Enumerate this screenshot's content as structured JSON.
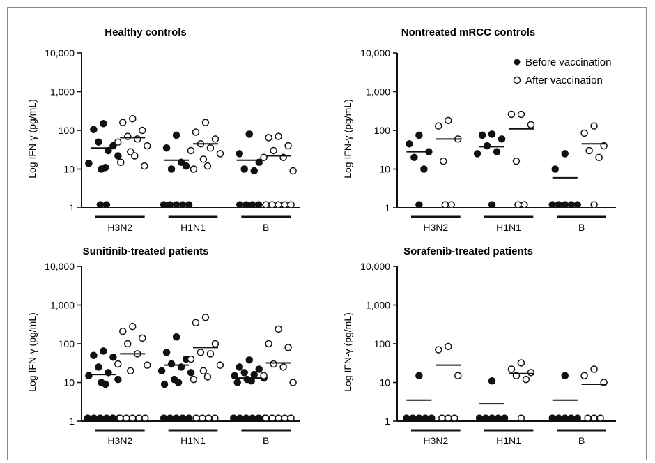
{
  "chart_data": [
    {
      "type": "scatter",
      "title": "Healthy controls",
      "ylabel": "Log IFN-γ (pg/mL)",
      "yscale": "log",
      "ylim": [
        1,
        10000
      ],
      "yticks": [
        "1",
        "10",
        "100",
        "1,000",
        "10,000"
      ],
      "categories": [
        "H3N2",
        "H1N1",
        "B"
      ],
      "series": [
        {
          "name": "Before vaccination",
          "marker": "filled",
          "values": [
            [
              150,
              105,
              40,
              50,
              30,
              14,
              22,
              10,
              11,
              1.2,
              1.2
            ],
            [
              75,
              35,
              12,
              10,
              15,
              1.2,
              1.2,
              1.2,
              1.2,
              1.2
            ],
            [
              80,
              25,
              15,
              10,
              9,
              1.2,
              1.2,
              1.2,
              1.2
            ]
          ]
        },
        {
          "name": "After vaccination",
          "marker": "open",
          "values": [
            [
              200,
              160,
              100,
              70,
              60,
              50,
              40,
              28,
              22,
              15,
              12
            ],
            [
              160,
              90,
              60,
              45,
              35,
              30,
              25,
              18,
              12,
              10
            ],
            [
              70,
              65,
              40,
              30,
              20,
              20,
              9,
              1.2,
              1.2,
              1.2,
              1.2,
              1.2
            ]
          ]
        }
      ],
      "means": [
        [
          35,
          65
        ],
        [
          17,
          45
        ],
        [
          17,
          22
        ]
      ]
    },
    {
      "type": "scatter",
      "title": "Nontreated mRCC controls",
      "ylabel": "Log IFN-γ (pg/mL)",
      "yscale": "log",
      "ylim": [
        1,
        10000
      ],
      "yticks": [
        "1",
        "10",
        "100",
        "1,000",
        "10,000"
      ],
      "categories": [
        "H3N2",
        "H1N1",
        "B"
      ],
      "series": [
        {
          "name": "Before vaccination",
          "marker": "filled",
          "values": [
            [
              75,
              45,
              28,
              20,
              10,
              1.2
            ],
            [
              80,
              75,
              60,
              40,
              28,
              25,
              1.2
            ],
            [
              25,
              10,
              1.2,
              1.2,
              1.2,
              1.2,
              1.2
            ]
          ]
        },
        {
          "name": "After vaccination",
          "marker": "open",
          "values": [
            [
              180,
              130,
              60,
              16,
              1.2,
              1.2
            ],
            [
              260,
              260,
              140,
              16,
              1.2,
              1.2
            ],
            [
              130,
              85,
              40,
              30,
              20,
              1.2
            ]
          ]
        }
      ],
      "means": [
        [
          28,
          60
        ],
        [
          38,
          110
        ],
        [
          6,
          45
        ]
      ]
    },
    {
      "type": "scatter",
      "title": "Sunitinib-treated patients",
      "ylabel": "Log IFN-γ (pg/mL)",
      "yscale": "log",
      "ylim": [
        1,
        10000
      ],
      "yticks": [
        "1",
        "10",
        "100",
        "1,000",
        "10,000"
      ],
      "categories": [
        "H3N2",
        "H1N1",
        "B"
      ],
      "series": [
        {
          "name": "Before vaccination",
          "marker": "filled",
          "values": [
            [
              65,
              50,
              45,
              25,
              18,
              15,
              12,
              10,
              9,
              1.2,
              1.2,
              1.2,
              1.2,
              1.2,
              1.2
            ],
            [
              150,
              60,
              40,
              30,
              25,
              20,
              18,
              12,
              10,
              9,
              1.2,
              1.2,
              1.2,
              1.2,
              1.2
            ],
            [
              38,
              25,
              22,
              18,
              16,
              15,
              13,
              12,
              11,
              10,
              1.2,
              1.2,
              1.2,
              1.2,
              1.2,
              1.2
            ]
          ]
        },
        {
          "name": "After vaccination",
          "marker": "open",
          "values": [
            [
              280,
              210,
              140,
              100,
              55,
              30,
              28,
              20,
              1.2,
              1.2,
              1.2,
              1.2,
              1.2
            ],
            [
              480,
              350,
              100,
              60,
              55,
              40,
              28,
              20,
              14,
              12,
              1.2,
              1.2,
              1.2,
              1.2
            ],
            [
              240,
              100,
              80,
              30,
              25,
              15,
              10,
              1.2,
              1.2,
              1.2,
              1.2,
              1.2
            ]
          ]
        }
      ],
      "means": [
        [
          16,
          55
        ],
        [
          28,
          80
        ],
        [
          13,
          32
        ]
      ]
    },
    {
      "type": "scatter",
      "title": "Sorafenib-treated patients",
      "ylabel": "Log IFN-γ (pg/mL)",
      "yscale": "log",
      "ylim": [
        1,
        10000
      ],
      "yticks": [
        "1",
        "10",
        "100",
        "1,000",
        "10,000"
      ],
      "categories": [
        "H3N2",
        "H1N1",
        "B"
      ],
      "series": [
        {
          "name": "Before vaccination",
          "marker": "filled",
          "values": [
            [
              15,
              1.2,
              1.2,
              1.2,
              1.2,
              1.2
            ],
            [
              11,
              1.2,
              1.2,
              1.2,
              1.2,
              1.2
            ],
            [
              15,
              1.2,
              1.2,
              1.2,
              1.2,
              1.2
            ]
          ]
        },
        {
          "name": "After vaccination",
          "marker": "open",
          "values": [
            [
              85,
              70,
              15,
              1.2,
              1.2,
              1.2
            ],
            [
              32,
              22,
              18,
              15,
              12,
              1.2
            ],
            [
              22,
              15,
              10,
              1.2,
              1.2,
              1.2
            ]
          ]
        }
      ],
      "means": [
        [
          3.5,
          28
        ],
        [
          2.8,
          17
        ],
        [
          3.5,
          9
        ]
      ]
    }
  ],
  "legend": {
    "position": "top-right of Nontreated mRCC controls panel",
    "items": [
      {
        "label": "Before vaccination",
        "marker": "filled"
      },
      {
        "label": "After vaccination",
        "marker": "open"
      }
    ]
  },
  "colors": {
    "marker": "#111111",
    "axis": "#111111",
    "frame": "#8a8a8a",
    "background": "#ffffff"
  }
}
